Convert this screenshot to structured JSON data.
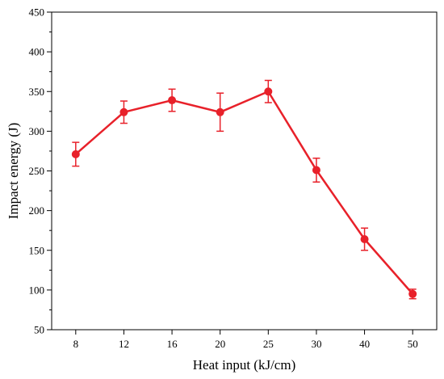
{
  "chart_data": {
    "type": "line",
    "title": "",
    "xlabel": "Heat input (kJ/cm)",
    "ylabel": "Impact energy (J)",
    "categories": [
      "8",
      "12",
      "16",
      "20",
      "25",
      "30",
      "40",
      "50"
    ],
    "ylim": [
      50,
      450
    ],
    "yticks": [
      50,
      100,
      150,
      200,
      250,
      300,
      350,
      400,
      450
    ],
    "grid": false,
    "legend": "none",
    "series": [
      {
        "values": [
          271,
          324,
          339,
          324,
          350,
          251,
          164,
          95
        ],
        "errors": [
          15,
          14,
          14,
          24,
          14,
          15,
          14,
          6
        ],
        "color": "#e8212a",
        "marker": "circle"
      }
    ]
  }
}
